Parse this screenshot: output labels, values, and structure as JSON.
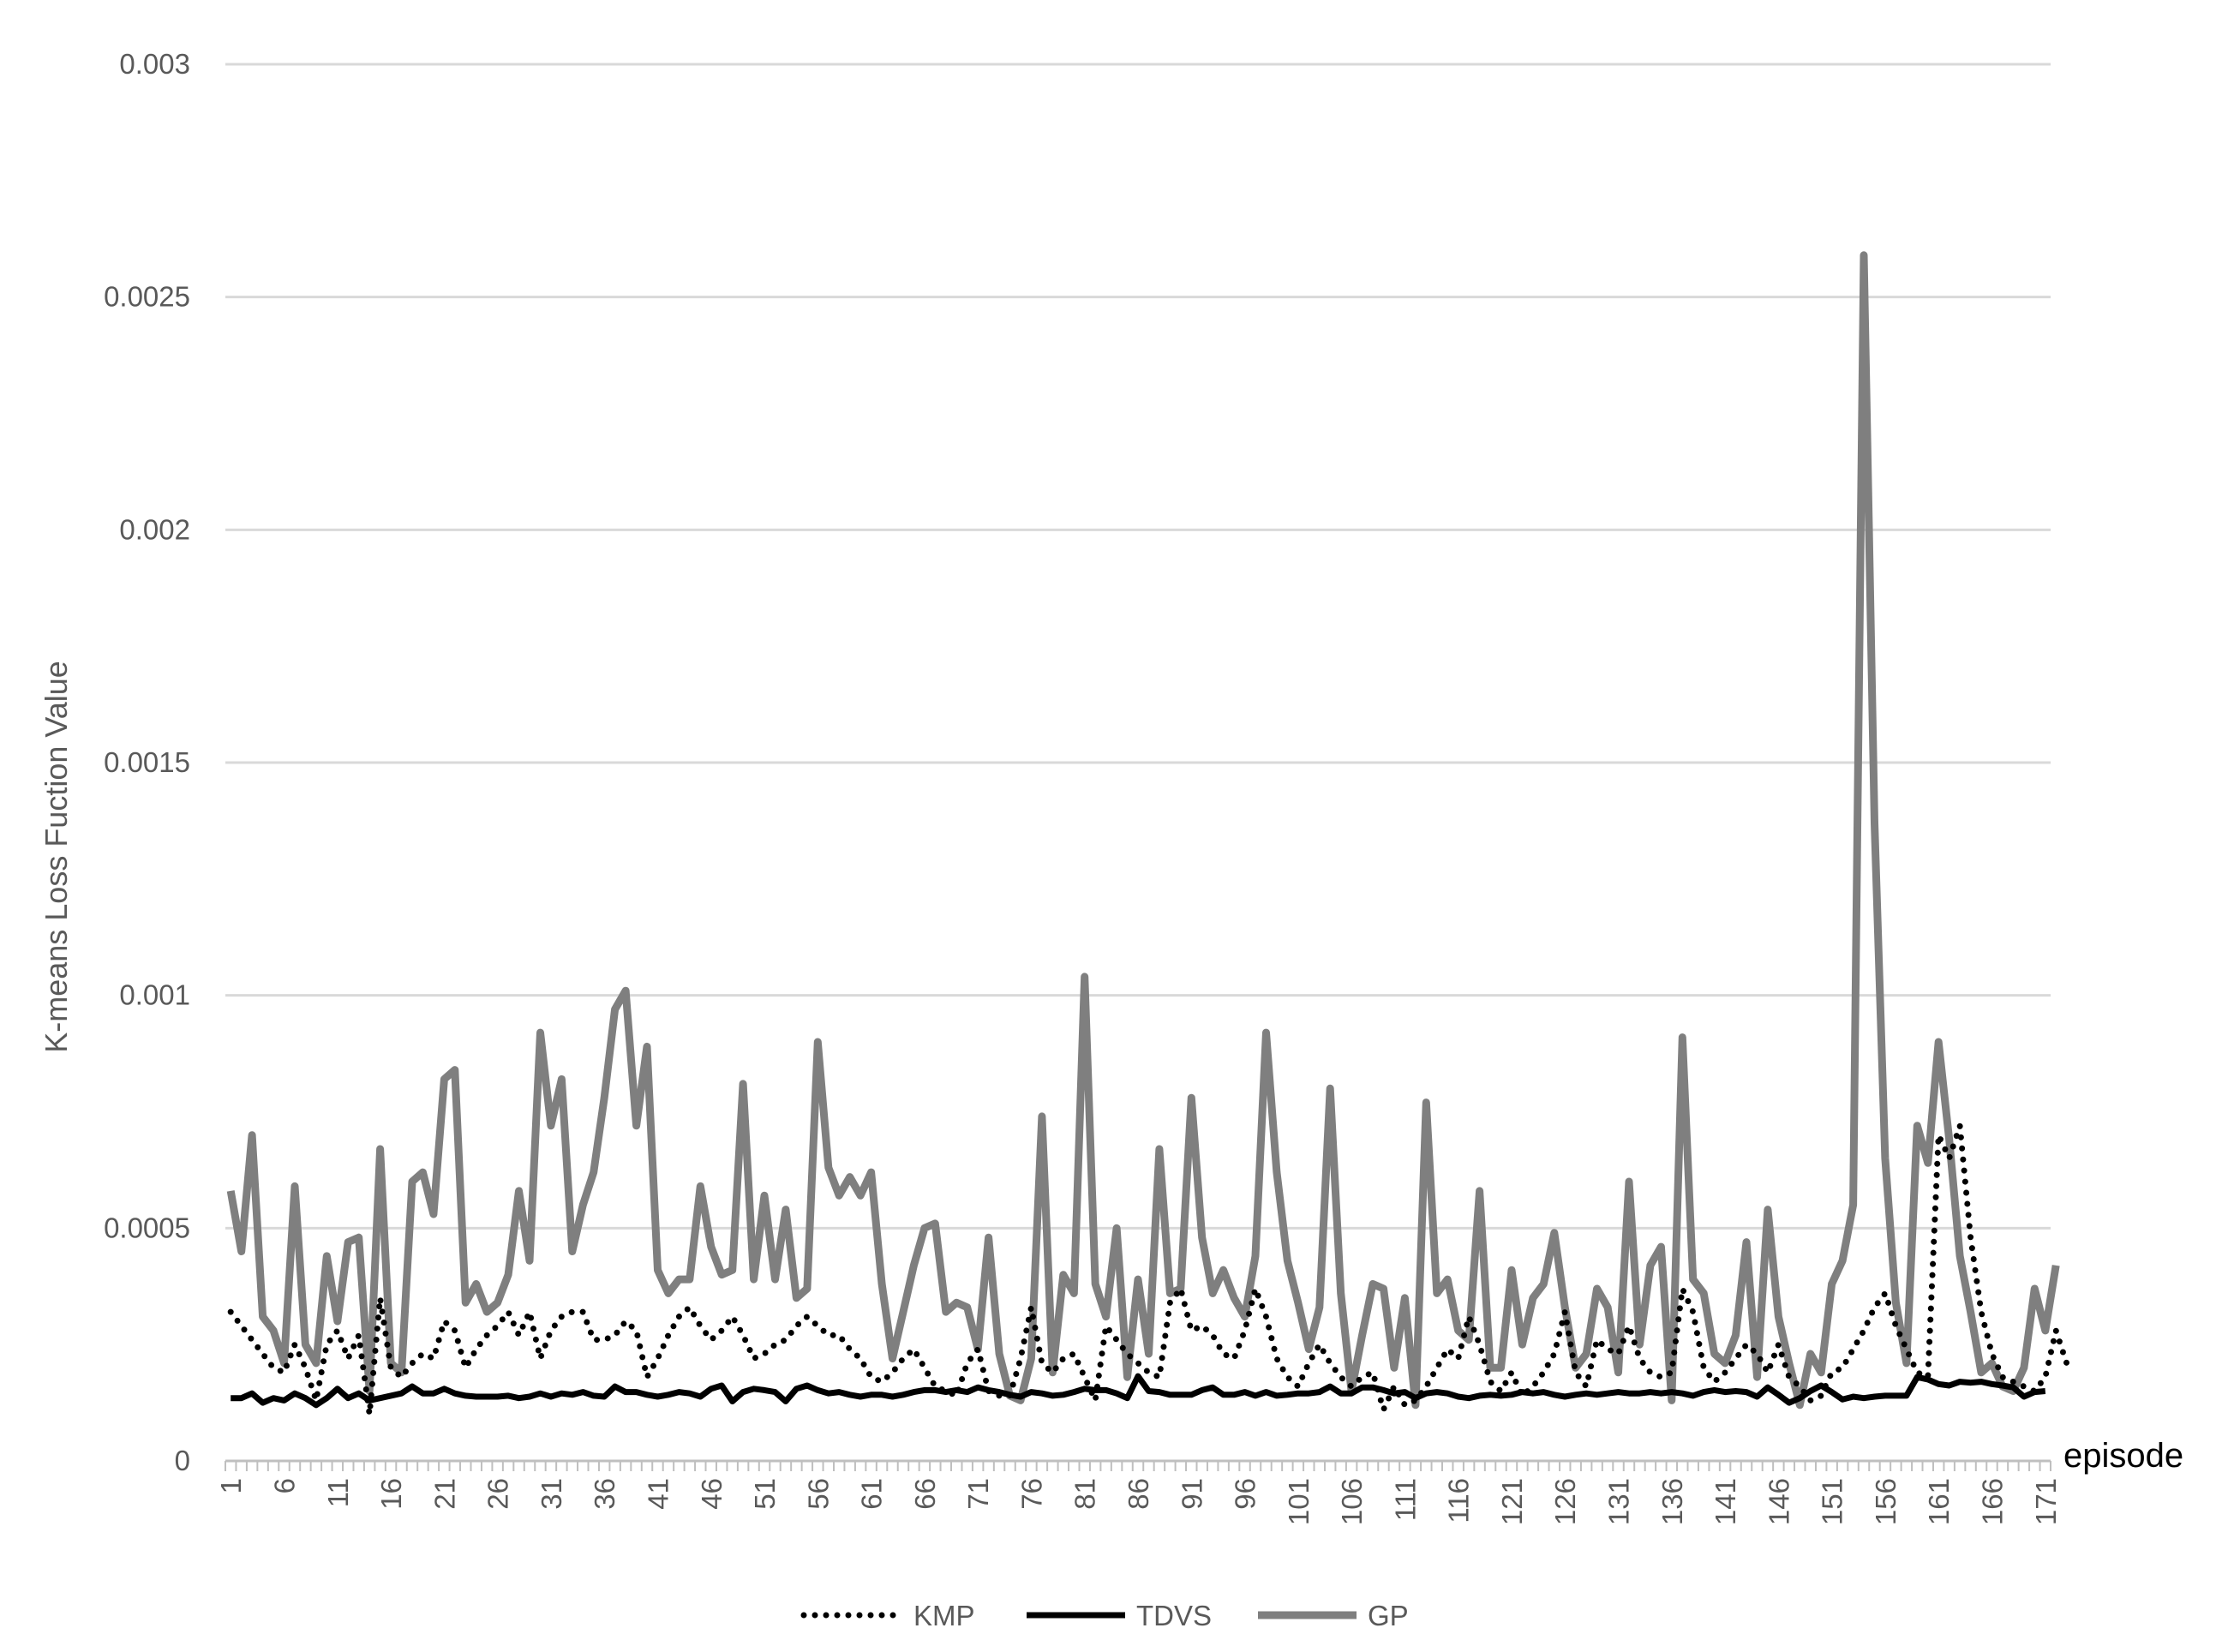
{
  "chart_data": {
    "type": "line",
    "ylabel": "K-means Loss Fuction Value",
    "xlabel": "episode",
    "ylim": [
      0,
      0.003
    ],
    "yticks": [
      0,
      0.0005,
      0.001,
      0.0015,
      0.002,
      0.0025,
      0.003
    ],
    "ytick_labels": [
      "0",
      "0.0005",
      "0.001",
      "0.0015",
      "0.002",
      "0.0025",
      "0.003"
    ],
    "x_start": 1,
    "x_end": 171,
    "xtick_labels": [
      "1",
      "6",
      "11",
      "16",
      "21",
      "26",
      "31",
      "36",
      "41",
      "46",
      "51",
      "56",
      "61",
      "66",
      "71",
      "76",
      "81",
      "86",
      "91",
      "96",
      "101",
      "106",
      "111",
      "116",
      "121",
      "126",
      "131",
      "136",
      "141",
      "146",
      "151",
      "156",
      "161",
      "166",
      "171"
    ],
    "grid": "horizontal",
    "legend_position": "bottom",
    "series": [
      {
        "name": "KMP",
        "style": "dotted",
        "color": "#000000",
        "values": [
          0.00032,
          0.00029,
          0.00026,
          0.00023,
          0.0002,
          0.00019,
          0.00025,
          0.0002,
          0.00013,
          0.00025,
          0.00028,
          0.00022,
          0.00027,
          0.0001,
          0.00035,
          0.0002,
          0.00018,
          0.00021,
          0.00023,
          0.00022,
          0.0003,
          0.00028,
          0.0002,
          0.00024,
          0.00027,
          0.00029,
          0.00032,
          0.00027,
          0.00032,
          0.00022,
          0.00028,
          0.00031,
          0.00032,
          0.00032,
          0.00026,
          0.00026,
          0.00027,
          0.0003,
          0.00028,
          0.00018,
          0.00022,
          0.00027,
          0.00031,
          0.00033,
          0.00029,
          0.00026,
          0.00028,
          0.00031,
          0.00027,
          0.00022,
          0.00023,
          0.00025,
          0.00026,
          0.00029,
          0.00031,
          0.00029,
          0.00027,
          0.00027,
          0.00024,
          0.00022,
          0.00018,
          0.00017,
          0.00019,
          0.00022,
          0.00024,
          0.0002,
          0.00016,
          0.00015,
          0.00014,
          0.00021,
          0.00024,
          0.00015,
          0.00014,
          0.00014,
          0.00022,
          0.00033,
          0.00021,
          0.00019,
          0.00022,
          0.00023,
          0.00018,
          0.00013,
          0.00029,
          0.00026,
          0.00023,
          0.00021,
          0.00019,
          0.00018,
          0.00034,
          0.00037,
          0.00028,
          0.00029,
          0.00027,
          0.00023,
          0.00022,
          0.00028,
          0.00037,
          0.00031,
          0.00022,
          0.00018,
          0.00016,
          0.00021,
          0.00025,
          0.00021,
          0.00018,
          0.00016,
          0.00018,
          0.00019,
          0.00011,
          0.00016,
          0.00012,
          0.00013,
          0.00016,
          0.0002,
          0.00024,
          0.00022,
          0.00031,
          0.00025,
          0.00017,
          0.00015,
          0.00019,
          0.00014,
          0.00016,
          0.00019,
          0.00023,
          0.00032,
          0.00019,
          0.00016,
          0.00026,
          0.00024,
          0.00023,
          0.00029,
          0.00022,
          0.00019,
          0.00018,
          0.00019,
          0.00037,
          0.00032,
          0.0002,
          0.00017,
          0.00019,
          0.00022,
          0.00025,
          0.00023,
          0.00019,
          0.00025,
          0.00018,
          0.00016,
          0.00013,
          0.00014,
          0.00019,
          0.0002,
          0.00024,
          0.00028,
          0.00033,
          0.00036,
          0.00029,
          0.00024,
          0.00019,
          0.00018,
          0.0007,
          0.00065,
          0.00072,
          0.00048,
          0.00032,
          0.00023,
          0.00018,
          0.00017,
          0.00016,
          0.00015,
          0.00018,
          0.00028,
          0.00021
        ]
      },
      {
        "name": "TDVS",
        "style": "solid",
        "color": "#000000",
        "values": [
          0.000135,
          0.000135,
          0.000145,
          0.000125,
          0.000135,
          0.00013,
          0.000145,
          0.000135,
          0.00012,
          0.000135,
          0.000155,
          0.000135,
          0.000145,
          0.00013,
          0.000135,
          0.00014,
          0.000145,
          0.00016,
          0.000145,
          0.000145,
          0.000155,
          0.000145,
          0.00014,
          0.000138,
          0.000138,
          0.000138,
          0.00014,
          0.000135,
          0.000138,
          0.000145,
          0.000138,
          0.000145,
          0.000142,
          0.000148,
          0.00014,
          0.000138,
          0.00016,
          0.000148,
          0.000148,
          0.000142,
          0.000138,
          0.000142,
          0.000148,
          0.000145,
          0.000138,
          0.000155,
          0.000162,
          0.000128,
          0.000148,
          0.000155,
          0.000152,
          0.000148,
          0.000128,
          0.000155,
          0.000162,
          0.000152,
          0.000145,
          0.000148,
          0.000142,
          0.000138,
          0.000142,
          0.000142,
          0.000138,
          0.000142,
          0.000148,
          0.000152,
          0.000152,
          0.000148,
          0.000152,
          0.000148,
          0.000158,
          0.000152,
          0.000148,
          0.000142,
          0.000138,
          0.000148,
          0.000145,
          0.00014,
          0.000142,
          0.000148,
          0.000155,
          0.000152,
          0.000152,
          0.000145,
          0.000135,
          0.000182,
          0.00015,
          0.000148,
          0.000142,
          0.000142,
          0.000142,
          0.000152,
          0.000158,
          0.000142,
          0.000142,
          0.000148,
          0.00014,
          0.000148,
          0.00014,
          0.000142,
          0.000145,
          0.000145,
          0.000148,
          0.00016,
          0.000145,
          0.000145,
          0.000158,
          0.000158,
          0.000152,
          0.000145,
          0.000148,
          0.000135,
          0.000145,
          0.000148,
          0.000145,
          0.000138,
          0.000135,
          0.00014,
          0.000142,
          0.00014,
          0.000142,
          0.000148,
          0.000145,
          0.000148,
          0.000142,
          0.000138,
          0.000142,
          0.000145,
          0.000142,
          0.000145,
          0.000148,
          0.000145,
          0.000145,
          0.000148,
          0.000145,
          0.000148,
          0.000145,
          0.00014,
          0.000148,
          0.000152,
          0.000148,
          0.00015,
          0.000148,
          0.000138,
          0.000158,
          0.000142,
          0.000125,
          0.000135,
          0.00015,
          0.000162,
          0.000148,
          0.000132,
          0.000138,
          0.000135,
          0.000138,
          0.00014,
          0.00014,
          0.00014,
          0.00018,
          0.000175,
          0.000165,
          0.000162,
          0.00017,
          0.000168,
          0.00017,
          0.000165,
          0.000162,
          0.000158,
          0.000138,
          0.000148,
          0.00015
        ]
      },
      {
        "name": "GP",
        "style": "solid",
        "color": "#7f7f7f",
        "values": [
          0.00058,
          0.00045,
          0.0007,
          0.00031,
          0.00028,
          0.00021,
          0.00059,
          0.00025,
          0.00021,
          0.00044,
          0.0003,
          0.00047,
          0.00048,
          0.00015,
          0.00067,
          0.00021,
          0.00019,
          0.0006,
          0.00062,
          0.00053,
          0.00082,
          0.00084,
          0.00034,
          0.00038,
          0.00032,
          0.00034,
          0.0004,
          0.00058,
          0.00043,
          0.00092,
          0.00072,
          0.00082,
          0.00045,
          0.00055,
          0.00062,
          0.00078,
          0.00097,
          0.00101,
          0.00072,
          0.00089,
          0.00041,
          0.00036,
          0.00039,
          0.00039,
          0.00059,
          0.00046,
          0.0004,
          0.00041,
          0.00081,
          0.00039,
          0.00057,
          0.00039,
          0.00054,
          0.00035,
          0.00037,
          0.0009,
          0.00063,
          0.00057,
          0.00061,
          0.00057,
          0.00062,
          0.00038,
          0.00022,
          0.00032,
          0.00042,
          0.0005,
          0.00051,
          0.00032,
          0.00034,
          0.00033,
          0.00024,
          0.00048,
          0.00023,
          0.00014,
          0.00013,
          0.00022,
          0.00074,
          0.00019,
          0.0004,
          0.00036,
          0.00104,
          0.00038,
          0.00031,
          0.0005,
          0.00018,
          0.00039,
          0.00023,
          0.00067,
          0.00036,
          0.00037,
          0.00078,
          0.00048,
          0.00036,
          0.00041,
          0.00035,
          0.00031,
          0.00044,
          0.00092,
          0.00062,
          0.00043,
          0.00034,
          0.00024,
          0.00033,
          0.0008,
          0.00036,
          0.00015,
          0.00027,
          0.00038,
          0.00037,
          0.0002,
          0.00035,
          0.00012,
          0.00077,
          0.00036,
          0.00039,
          0.00028,
          0.00026,
          0.00058,
          0.0002,
          0.0002,
          0.00041,
          0.00025,
          0.00035,
          0.00038,
          0.00049,
          0.00033,
          0.0002,
          0.00023,
          0.00037,
          0.00033,
          0.00019,
          0.0006,
          0.00025,
          0.00042,
          0.00046,
          0.00013,
          0.00091,
          0.00039,
          0.00036,
          0.00023,
          0.00021,
          0.00027,
          0.00047,
          0.00018,
          0.00054,
          0.00031,
          0.00021,
          0.00012,
          0.00023,
          0.00019,
          0.00038,
          0.00043,
          0.00055,
          0.00259,
          0.00137,
          0.00065,
          0.00034,
          0.00021,
          0.00072,
          0.00064,
          0.0009,
          0.00069,
          0.00044,
          0.00032,
          0.00019,
          0.00021,
          0.00016,
          0.00015,
          0.0002,
          0.00037,
          0.00028,
          0.00042
        ]
      }
    ]
  }
}
